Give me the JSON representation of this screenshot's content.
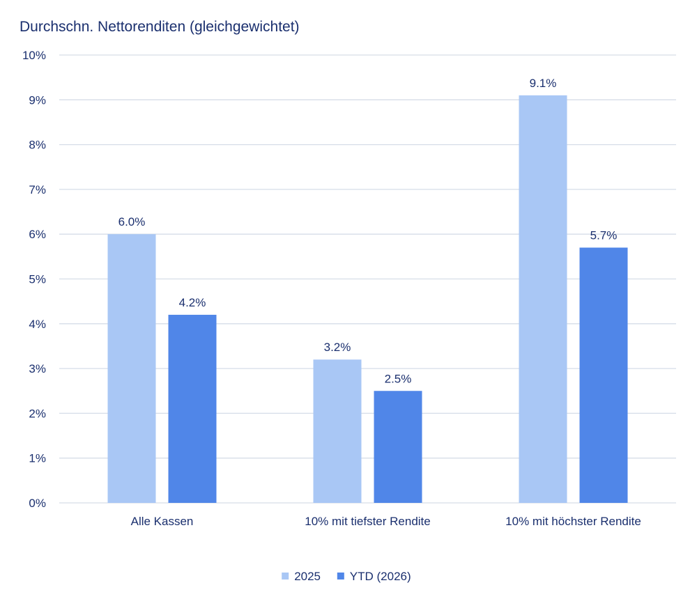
{
  "chart_data": {
    "type": "bar",
    "title": "Durchschn. Nettorenditen (gleichgewichtet)",
    "categories": [
      "Alle Kassen",
      "10% mit tiefster Rendite",
      "10% mit höchster Rendite"
    ],
    "series": [
      {
        "name": "2025",
        "values": [
          6.0,
          3.2,
          9.1
        ],
        "labels": [
          "6.0%",
          "3.2%",
          "9.1%"
        ],
        "color": "#a9c7f5"
      },
      {
        "name": "YTD (2026)",
        "values": [
          4.2,
          2.5,
          5.7
        ],
        "labels": [
          "4.2%",
          "2.5%",
          "5.7%"
        ],
        "color": "#5086e8"
      }
    ],
    "ylim": [
      0,
      10
    ],
    "yticks": [
      "0%",
      "1%",
      "2%",
      "3%",
      "4%",
      "5%",
      "6%",
      "7%",
      "8%",
      "9%",
      "10%"
    ],
    "grid": true,
    "legend": "bottom-center"
  }
}
